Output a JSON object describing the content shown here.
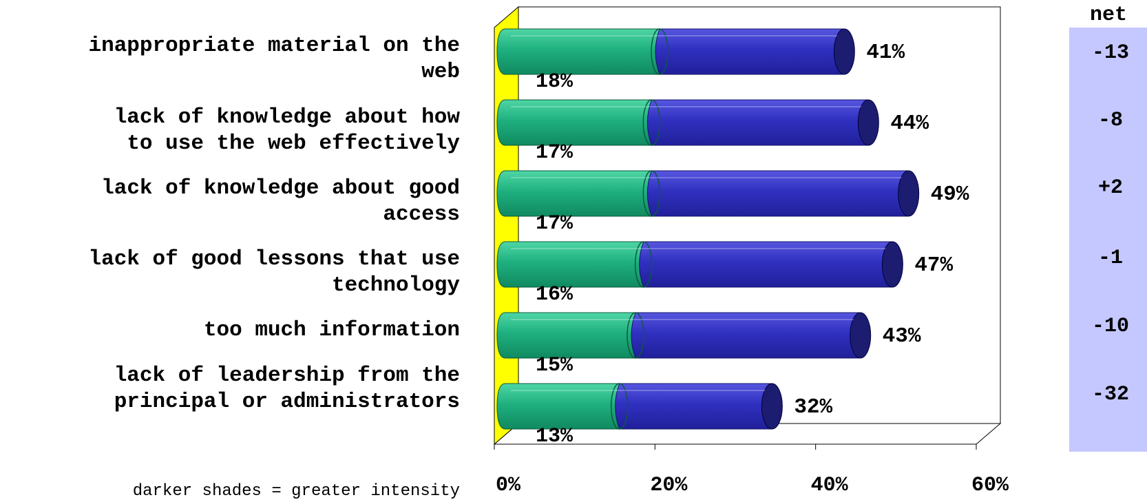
{
  "chart_data": {
    "type": "bar",
    "stacked": true,
    "orientation": "horizontal",
    "categories": [
      "inappropriate material on the\nweb",
      "lack of knowledge about how\nto use the web effectively",
      "lack of knowledge about good\naccess",
      "lack of good lessons that use\ntechnology",
      "too much information",
      "lack of leadership from the\nprincipal or administrators"
    ],
    "series": [
      {
        "color": "#1fb07f",
        "values": [
          18,
          17,
          17,
          16,
          15,
          13
        ],
        "labels": [
          "18%",
          "17%",
          "17%",
          "16%",
          "15%",
          "13%"
        ]
      },
      {
        "color": "#3030c0",
        "values": [
          23,
          27,
          32,
          31,
          28,
          19
        ]
      }
    ],
    "totals": [
      41,
      44,
      49,
      47,
      43,
      32
    ],
    "total_labels": [
      "41%",
      "44%",
      "49%",
      "47%",
      "43%",
      "32%"
    ],
    "xlim": [
      0,
      60
    ],
    "x_ticks": [
      0,
      20,
      40,
      60
    ],
    "x_tick_labels": [
      "0%",
      "20%",
      "40%",
      "60%"
    ],
    "grid": false,
    "wall_color": "#ffff00",
    "net_header": "net",
    "net_values": [
      "-13",
      "-8",
      "+2",
      "-1",
      "-10",
      "-32"
    ],
    "net_panel_color": "#c5c8ff",
    "footnote": "darker shades = greater intensity"
  }
}
